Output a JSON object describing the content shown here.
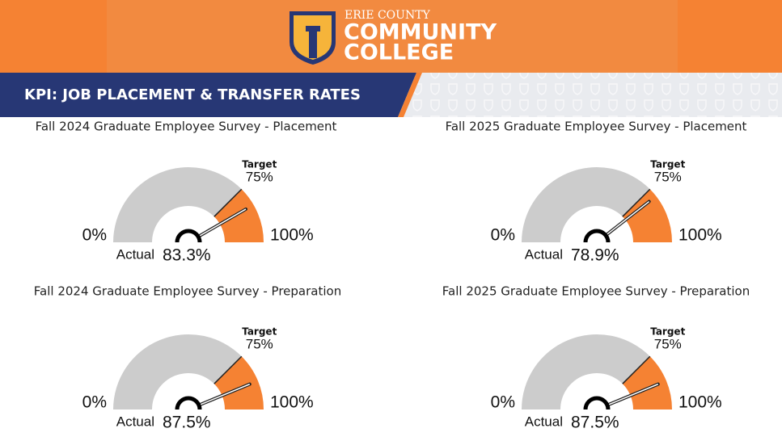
{
  "header": {
    "logo_line1": "ERIE COUNTY",
    "logo_line2": "COMMUNITY",
    "logo_line3": "COLLEGE",
    "banner": "KPI: JOB PLACEMENT & TRANSFER RATES"
  },
  "chart_data": [
    {
      "type": "gauge",
      "title": "Fall 2024 Graduate Employee Survey - Placement",
      "ticks": [
        {
          "value": 0,
          "label": "0%"
        },
        {
          "value": 100,
          "label": "100%"
        }
      ],
      "target_name": "Target",
      "target": {
        "value": 75,
        "label": "75%"
      },
      "value_name": "Actual",
      "values": [
        83.3
      ],
      "value_labels": [
        "83.3%"
      ],
      "band_color": "#cccccc",
      "zone_color": "#f58233"
    },
    {
      "type": "gauge",
      "title": "Fall 2025 Graduate Employee Survey - Placement",
      "ticks": [
        {
          "value": 0,
          "label": "0%"
        },
        {
          "value": 100,
          "label": "100%"
        }
      ],
      "target_name": "Target",
      "target": {
        "value": 75,
        "label": "75%"
      },
      "value_name": "Actual",
      "values": [
        78.9
      ],
      "value_labels": [
        "78.9%"
      ],
      "band_color": "#cccccc",
      "zone_color": "#f58233"
    },
    {
      "type": "gauge",
      "title": "Fall 2024 Graduate Employee Survey - Preparation",
      "ticks": [
        {
          "value": 0,
          "label": "0%"
        },
        {
          "value": 100,
          "label": "100%"
        }
      ],
      "target_name": "Target",
      "target": {
        "value": 75,
        "label": "75%"
      },
      "value_name": "Actual",
      "values": [
        87.5
      ],
      "value_labels": [
        "87.5%"
      ],
      "band_color": "#cccccc",
      "zone_color": "#f58233"
    },
    {
      "type": "gauge",
      "title": "Fall 2025 Graduate Employee Survey - Preparation",
      "ticks": [
        {
          "value": 0,
          "label": "0%"
        },
        {
          "value": 100,
          "label": "100%"
        }
      ],
      "target_name": "Target",
      "target": {
        "value": 75,
        "label": "75%"
      },
      "value_name": "Actual",
      "values": [
        87.5
      ],
      "value_labels": [
        "87.5%"
      ],
      "band_color": "#cccccc",
      "zone_color": "#f58233"
    }
  ]
}
